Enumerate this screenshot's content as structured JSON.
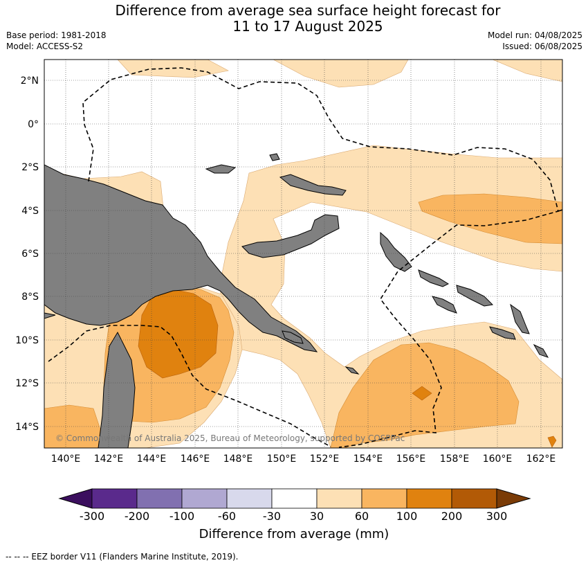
{
  "title_line1": "Difference from average sea surface height forecast for",
  "title_line2": "11 to 17 August 2025",
  "base_period": "Base period: 1981-2018",
  "model": "Model: ACCESS-S2",
  "model_run": "Model run: 04/08/2025",
  "issued": "Issued: 06/08/2025",
  "copyright": "© Commonwealth of Australia 2025, Bureau of Meteorology, supported by COSPPac",
  "lat_labels": [
    "2°N",
    "0°",
    "2°S",
    "4°S",
    "6°S",
    "8°S",
    "10°S",
    "12°S",
    "14°S"
  ],
  "lon_labels": [
    "140°E",
    "142°E",
    "144°E",
    "146°E",
    "148°E",
    "150°E",
    "152°E",
    "154°E",
    "156°E",
    "158°E",
    "160°E",
    "162°E"
  ],
  "colorbar": {
    "ticks": [
      "-300",
      "-200",
      "-100",
      "-60",
      "-30",
      "30",
      "60",
      "100",
      "200",
      "300"
    ],
    "colors": [
      "#3b0f5e",
      "#5a2a8c",
      "#8170b0",
      "#b0a8d2",
      "#d8d9ec",
      "#ffffff",
      "#fde0b5",
      "#f9b560",
      "#e0820f",
      "#b25a06",
      "#7a3b06"
    ],
    "label": "Difference from average (mm)"
  },
  "legend_footer": "--  --  -- EEZ border V11 (Flanders Marine Institute, 2019).",
  "palette": {
    "land": "#808080",
    "light_orange": "#fde0b5",
    "orange": "#f9b560",
    "dark_orange": "#e0820f"
  }
}
